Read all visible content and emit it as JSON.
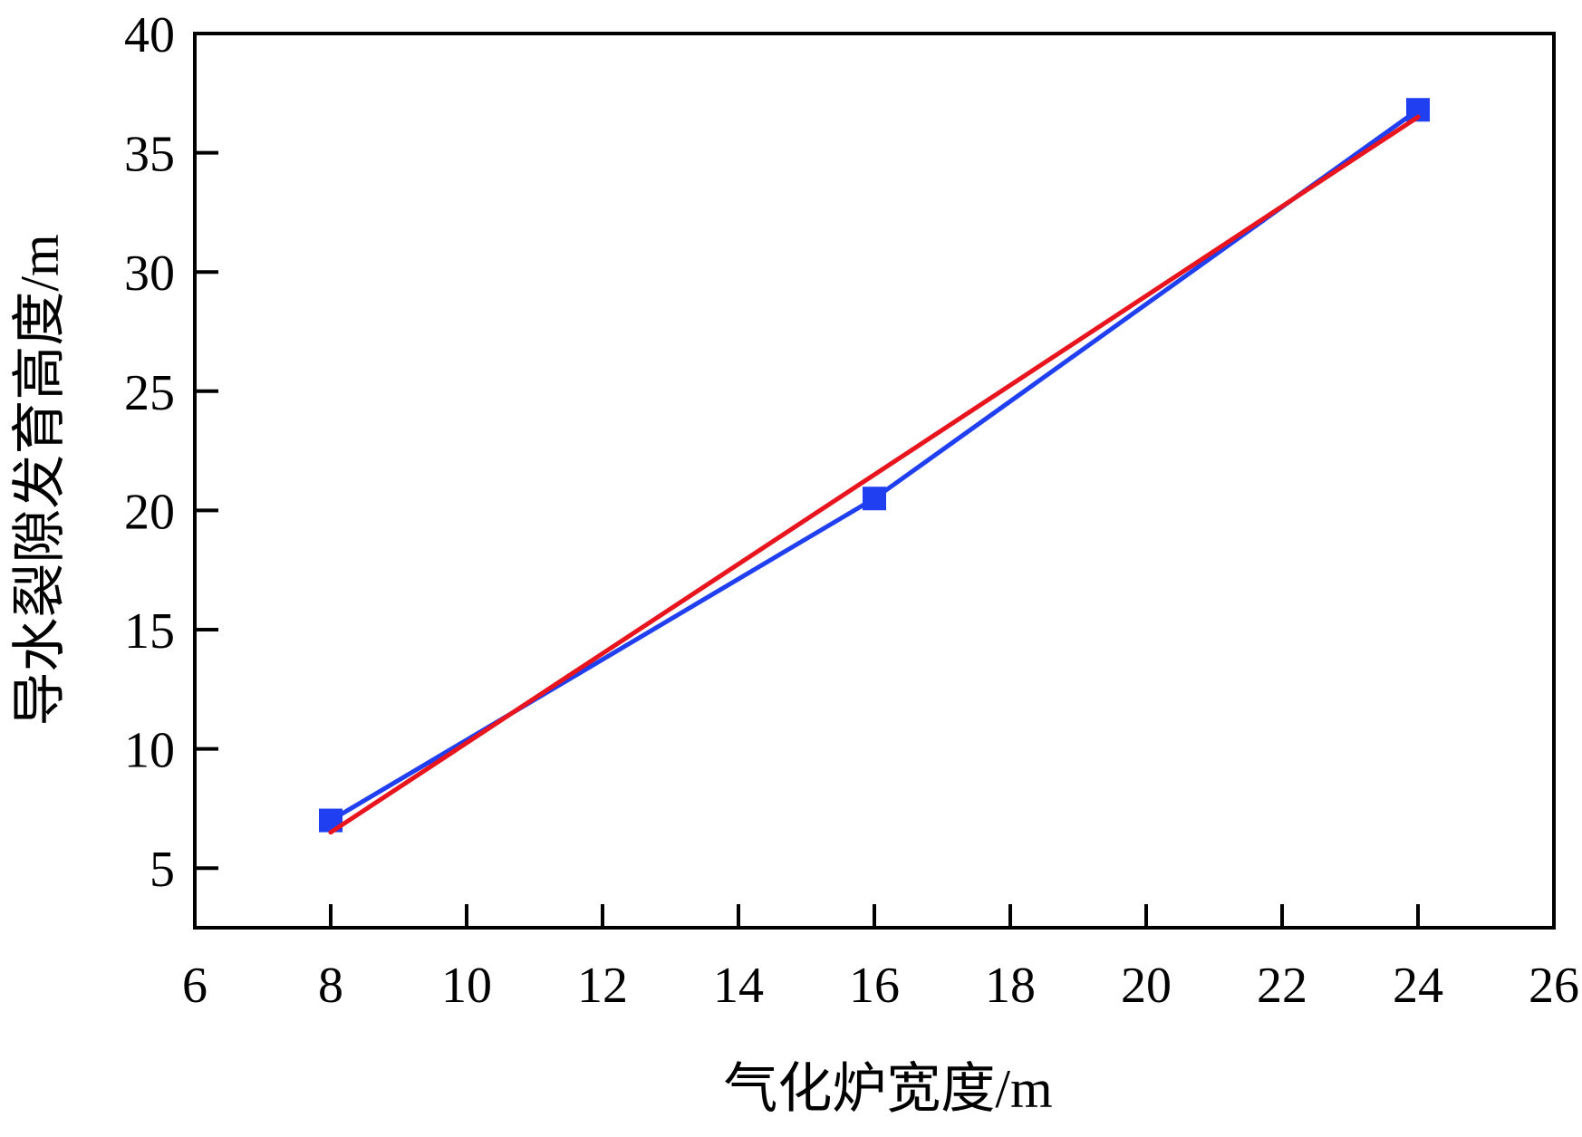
{
  "chart_data": {
    "type": "line",
    "title": "",
    "xlabel": "气化炉宽度/m",
    "ylabel": "导水裂隙发育高度/m",
    "xlim": [
      6,
      26
    ],
    "ylim": [
      2.5,
      40
    ],
    "xticks": [
      6,
      8,
      10,
      12,
      14,
      16,
      18,
      20,
      22,
      24,
      26
    ],
    "yticks": [
      5,
      10,
      15,
      20,
      25,
      30,
      35,
      40
    ],
    "x_tick_labels": [
      "6",
      "8",
      "10",
      "12",
      "14",
      "16",
      "18",
      "20",
      "22",
      "24",
      "26"
    ],
    "y_tick_labels": [
      "5",
      "10",
      "15",
      "20",
      "25",
      "30",
      "35",
      "40"
    ],
    "grid": false,
    "series": [
      {
        "color": "#1f3ff0",
        "marker": "square",
        "x": [
          8,
          16,
          24
        ],
        "y": [
          7.0,
          20.5,
          36.8
        ]
      },
      {
        "color": "#e8141e",
        "marker": "none",
        "style": "fit-line",
        "x": [
          8,
          24
        ],
        "y": [
          6.5,
          36.5
        ]
      }
    ]
  }
}
